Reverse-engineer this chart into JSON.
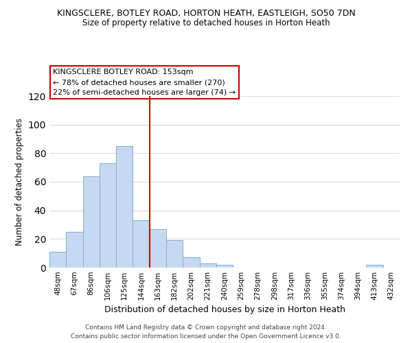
{
  "title": "KINGSCLERE, BOTLEY ROAD, HORTON HEATH, EASTLEIGH, SO50 7DN",
  "subtitle": "Size of property relative to detached houses in Horton Heath",
  "xlabel": "Distribution of detached houses by size in Horton Heath",
  "ylabel": "Number of detached properties",
  "bin_labels": [
    "48sqm",
    "67sqm",
    "86sqm",
    "106sqm",
    "125sqm",
    "144sqm",
    "163sqm",
    "182sqm",
    "202sqm",
    "221sqm",
    "240sqm",
    "259sqm",
    "278sqm",
    "298sqm",
    "317sqm",
    "336sqm",
    "355sqm",
    "374sqm",
    "394sqm",
    "413sqm",
    "432sqm"
  ],
  "bar_heights": [
    11,
    25,
    64,
    73,
    85,
    33,
    27,
    19,
    7,
    3,
    2,
    0,
    0,
    0,
    0,
    0,
    0,
    0,
    0,
    2,
    0
  ],
  "bar_color": "#c6d9f0",
  "bar_edge_color": "#7bafd4",
  "vline_x": 6.0,
  "vline_color": "#cc0000",
  "ylim": [
    0,
    120
  ],
  "yticks": [
    0,
    20,
    40,
    60,
    80,
    100,
    120
  ],
  "annotation_title": "KINGSCLERE BOTLEY ROAD: 153sqm",
  "annotation_line1": "← 78% of detached houses are smaller (270)",
  "annotation_line2": "22% of semi-detached houses are larger (74) →",
  "annotation_box_color": "#ffffff",
  "annotation_box_edge": "#cc0000",
  "footnote1": "Contains HM Land Registry data © Crown copyright and database right 2024.",
  "footnote2": "Contains public sector information licensed under the Open Government Licence v3.0.",
  "background_color": "#ffffff",
  "grid_color": "#d4dce8"
}
